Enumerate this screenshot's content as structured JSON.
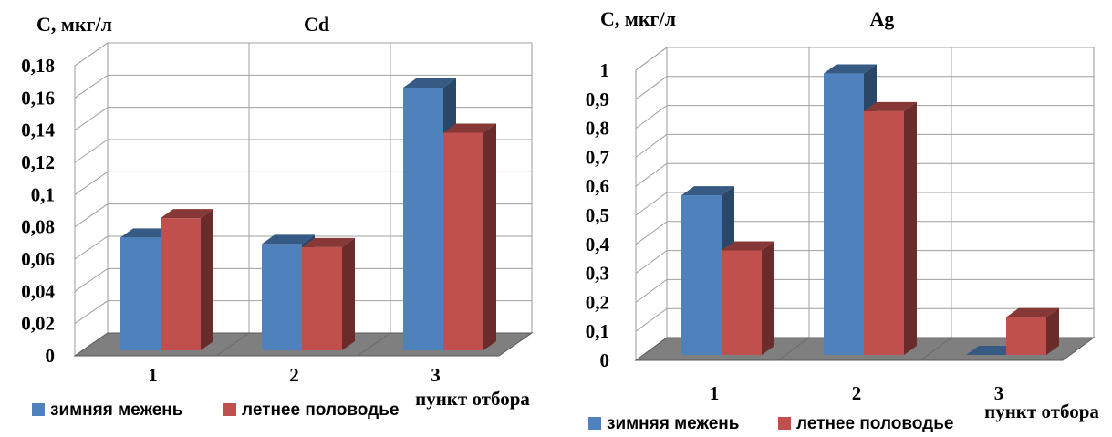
{
  "chart_data": [
    {
      "type": "bar",
      "title": "Cd",
      "ylabel": "С, мкг/л",
      "xlabel": "пункт отбора",
      "categories": [
        "1",
        "2",
        "3"
      ],
      "ylim": [
        0,
        0.18
      ],
      "yticks": [
        "0",
        "0,02",
        "0,04",
        "0,06",
        "0,08",
        "0,1",
        "0,12",
        "0,14",
        "0,16",
        "0,18"
      ],
      "series": [
        {
          "name": "зимняя межень",
          "values": [
            0.07,
            0.066,
            0.163
          ],
          "color": "#4F81BD"
        },
        {
          "name": "летнее половодье",
          "values": [
            0.082,
            0.064,
            0.135
          ],
          "color": "#C0504D"
        }
      ],
      "grid": true,
      "legend": "bottom"
    },
    {
      "type": "bar",
      "title": "Ag",
      "ylabel": "С, мкг/л",
      "xlabel": "пункт отбора",
      "categories": [
        "1",
        "2",
        "3"
      ],
      "ylim": [
        0,
        1
      ],
      "yticks": [
        "0",
        "0,1",
        "0,2",
        "0,3",
        "0,4",
        "0,5",
        "0,6",
        "0,7",
        "0,8",
        "0,9",
        "1"
      ],
      "series": [
        {
          "name": "зимняя межень",
          "values": [
            0.55,
            0.97,
            0
          ],
          "color": "#4F81BD"
        },
        {
          "name": "летнее половодье",
          "values": [
            0.36,
            0.84,
            0.13
          ],
          "color": "#C0504D"
        }
      ],
      "grid": true,
      "legend": "bottom"
    }
  ]
}
